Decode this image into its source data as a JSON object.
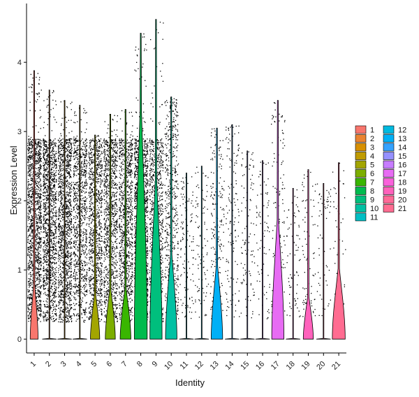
{
  "chart_data": {
    "type": "violin",
    "xlabel": "Identity",
    "ylabel": "Expression Level",
    "ylim": [
      -0.2,
      4.85
    ],
    "yticks": [
      0,
      1,
      2,
      3,
      4
    ],
    "categories": [
      "1",
      "2",
      "3",
      "4",
      "5",
      "6",
      "7",
      "8",
      "9",
      "10",
      "11",
      "12",
      "13",
      "14",
      "15",
      "16",
      "17",
      "18",
      "19",
      "20",
      "21"
    ],
    "colors": [
      "#F8766D",
      "#EA8331",
      "#D89000",
      "#C09B00",
      "#A3A500",
      "#7CAE00",
      "#39B600",
      "#00BB4E",
      "#00BF7D",
      "#00C1A3",
      "#00BFC4",
      "#00BAE0",
      "#00B0F6",
      "#35A2FF",
      "#9590FF",
      "#C77CFF",
      "#E76BF3",
      "#FA62DB",
      "#FF62BC",
      "#FF6A98",
      "#FF6C91"
    ],
    "violins": [
      {
        "max": 3.88,
        "density": 0.55,
        "fill": 0.2,
        "points": 1400
      },
      {
        "max": 3.6,
        "density": 0.0,
        "fill": 0.2,
        "points": 1300
      },
      {
        "max": 3.45,
        "density": 0.0,
        "fill": 0.25,
        "points": 1300
      },
      {
        "max": 3.38,
        "density": 0.0,
        "fill": 0.22,
        "points": 900
      },
      {
        "max": 2.95,
        "density": 0.65,
        "fill": 0.22,
        "points": 1000
      },
      {
        "max": 3.25,
        "density": 0.7,
        "fill": 0.22,
        "points": 1000
      },
      {
        "max": 3.32,
        "density": 0.75,
        "fill": 0.22,
        "points": 950
      },
      {
        "max": 4.42,
        "density": 0.9,
        "fill": 0.75,
        "points": 1300
      },
      {
        "max": 4.62,
        "density": 0.85,
        "fill": 0.5,
        "points": 800
      },
      {
        "max": 3.5,
        "density": 0.8,
        "fill": 0.35,
        "points": 500
      },
      {
        "max": 2.4,
        "density": 0.0,
        "fill": 0.2,
        "points": 120
      },
      {
        "max": 2.5,
        "density": 0.0,
        "fill": 0.2,
        "points": 90
      },
      {
        "max": 3.05,
        "density": 0.8,
        "fill": 0.35,
        "points": 180
      },
      {
        "max": 3.1,
        "density": 0.0,
        "fill": 0.2,
        "points": 130
      },
      {
        "max": 2.72,
        "density": 0.0,
        "fill": 0.2,
        "points": 100
      },
      {
        "max": 2.58,
        "density": 0.0,
        "fill": 0.2,
        "points": 80
      },
      {
        "max": 3.45,
        "density": 0.85,
        "fill": 0.5,
        "points": 140
      },
      {
        "max": 2.18,
        "density": 0.0,
        "fill": 0.2,
        "points": 70
      },
      {
        "max": 2.45,
        "density": 0.7,
        "fill": 0.25,
        "points": 90
      },
      {
        "max": 2.25,
        "density": 0.0,
        "fill": 0.2,
        "points": 60
      },
      {
        "max": 2.55,
        "density": 0.9,
        "fill": 0.4,
        "points": 40
      }
    ],
    "legend": {
      "position": "right",
      "columns": [
        [
          "1",
          "2",
          "3",
          "4",
          "5",
          "6",
          "7",
          "8",
          "9",
          "10",
          "11"
        ],
        [
          "12",
          "13",
          "14",
          "15",
          "16",
          "17",
          "18",
          "19",
          "20",
          "21"
        ]
      ]
    }
  }
}
